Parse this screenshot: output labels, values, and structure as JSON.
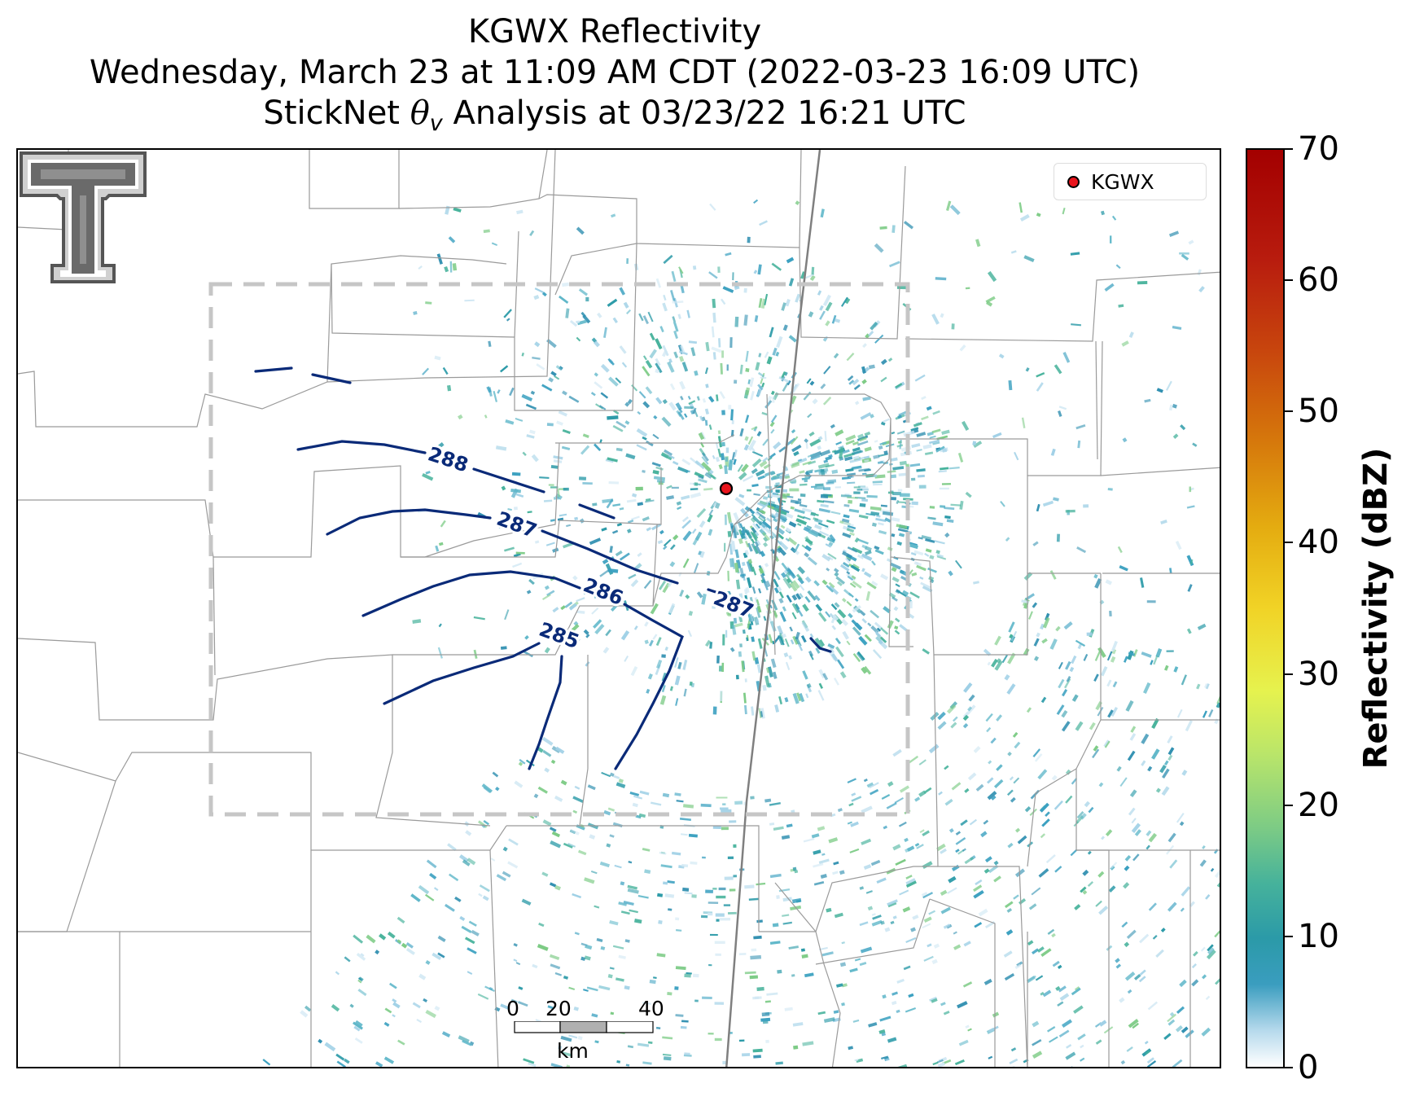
{
  "title": {
    "line1": "KGWX Reflectivity",
    "line2": "Wednesday, March 23 at 11:09 AM CDT (2022-03-23 16:09 UTC)",
    "line3_prefix": "StickNet ",
    "line3_symbol": "θ",
    "line3_subscript": "v",
    "line3_suffix": " Analysis at 03/23/22 16:21 UTC"
  },
  "legend": {
    "label": "KGWX",
    "marker_color": "#e8141c"
  },
  "radar_site": {
    "name": "KGWX"
  },
  "contours": {
    "color": "#0a2a78",
    "labels": [
      "288",
      "287",
      "286",
      "287",
      "285"
    ]
  },
  "scale_bar": {
    "ticks": [
      "0",
      "20",
      "40"
    ],
    "unit": "km"
  },
  "colorbar": {
    "label": "Reflectivity (dBZ)",
    "min": 0,
    "max": 70,
    "ticks": [
      "0",
      "10",
      "20",
      "30",
      "40",
      "50",
      "60",
      "70"
    ],
    "colors": [
      "#ffffff",
      "#3a9dbf",
      "#46b29b",
      "#b9e56a",
      "#f1d326",
      "#d6790c",
      "#a30000"
    ]
  },
  "logo": {
    "name": "texas-tech-double-t-logo"
  }
}
